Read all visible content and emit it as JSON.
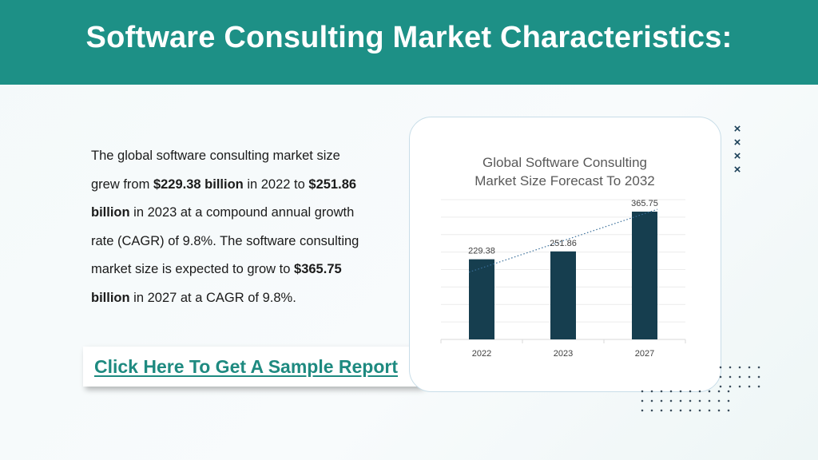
{
  "header": {
    "title": "Software Consulting Market Characteristics:"
  },
  "description": {
    "part1": "The global software consulting market size grew from ",
    "value_2022": "$229.38 billion",
    "part2": " in 2022 to ",
    "value_2023": "$251.86 billion",
    "part3": " in 2023 at a compound annual growth rate (CAGR) of 9.8%. The software consulting market size is expected to grow to ",
    "value_2027": "$365.75 billion",
    "part4": " in 2027 at a CAGR of 9.8%."
  },
  "cta": {
    "label": "Click Here To Get A Sample Report"
  },
  "decor": {
    "x_marks": [
      "×",
      "×",
      "×",
      "×"
    ]
  },
  "colors": {
    "header": "#1d9086",
    "bar": "#163e4f",
    "link": "#1e8a80",
    "trendline": "#3a6f9a"
  },
  "chart_data": {
    "type": "bar",
    "title": "Global Software Consulting Market Size Forecast To 2032",
    "title_lines": [
      "Global Software Consulting",
      "Market Size Forecast To 2032"
    ],
    "categories": [
      "2022",
      "2023",
      "2027"
    ],
    "values": [
      229.38,
      251.86,
      365.75
    ],
    "data_labels": [
      "229.38",
      "251.86",
      "365.75"
    ],
    "ylim": [
      0,
      400
    ],
    "grid": true,
    "trendline": "dotted linear",
    "legend": "none"
  }
}
